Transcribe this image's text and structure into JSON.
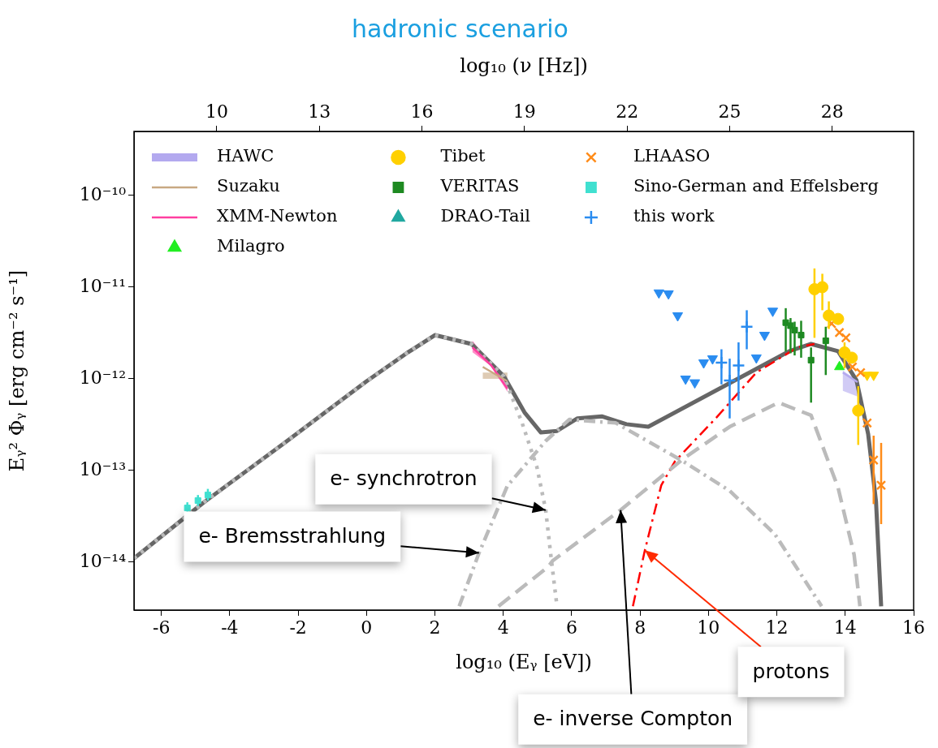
{
  "chart_data": {
    "type": "scatter",
    "title": "hadronic scenario",
    "xlabel": "log₁₀ (Eᵧ [eV])",
    "x2label": "log₁₀ (ν [Hz])",
    "ylabel": "Eᵧ² Φᵧ [erg cm⁻² s⁻¹]",
    "xlim": [
      -6.8,
      16
    ],
    "xticks": [
      -6,
      -4,
      -2,
      0,
      2,
      4,
      6,
      8,
      10,
      12,
      14,
      16
    ],
    "x2lim": [
      7.58,
      30.38
    ],
    "x2ticks": [
      10,
      13,
      16,
      19,
      22,
      25,
      28
    ],
    "ylim": [
      3e-15,
      5e-10
    ],
    "yticks": [
      {
        "value": 1e-14,
        "label": "10⁻¹⁴"
      },
      {
        "value": 1e-13,
        "label": "10⁻¹³"
      },
      {
        "value": 1e-12,
        "label": "10⁻¹²"
      },
      {
        "value": 1e-11,
        "label": "10⁻¹¹"
      },
      {
        "value": 1e-10,
        "label": "10⁻¹⁰"
      }
    ],
    "log": true,
    "grid": false,
    "legend": "top left",
    "series": [
      {
        "name": "HAWC",
        "type": "line",
        "color": "#b3a9ef",
        "line_style": "solid",
        "x": [
          13.93,
          14.36
        ],
        "values": [
          1.17e-12,
          9.2e-13
        ],
        "lower": [
          7.4e-13,
          6.4e-13
        ],
        "upper": [
          1.23e-12,
          9.6e-13
        ]
      },
      {
        "name": "Suzaku",
        "type": "line",
        "color": "#c8a882",
        "line_style": "solid",
        "x": [
          3.4,
          4.12
        ],
        "values": [
          1.35e-12,
          9.4e-13
        ],
        "lower": [
          1e-12,
          1e-12
        ],
        "upper": [
          1.17e-12,
          1.17e-12
        ]
      },
      {
        "name": "XMM-Newton",
        "type": "line",
        "color": "#ff3fa0",
        "line_style": "solid",
        "x": [
          3.1,
          3.64,
          4.12
        ],
        "values": [
          2.2e-12,
          1.41e-12,
          7.8e-13
        ],
        "lower": [
          1.95e-12,
          1.38e-12,
          7.2e-13
        ],
        "upper": [
          2.6e-12,
          1.45e-12,
          8.5e-13
        ]
      },
      {
        "name": "Milagro",
        "color": "#22ee22",
        "marker": "triangle",
        "x": [
          13.83
        ],
        "values": [
          1.35e-12
        ]
      },
      {
        "name": "Tibet",
        "color": "#ffd000",
        "marker": "circle",
        "x": [
          13.1,
          13.33,
          13.52,
          13.79,
          13.98,
          14.19,
          14.38
        ],
        "values": [
          9.5e-12,
          1e-11,
          4.9e-12,
          4.5e-12,
          1.94e-12,
          1.7e-12,
          4.5e-13
        ],
        "errors": [
          [
            2.8e-12,
            1.6e-11
          ],
          [
            5.6e-12,
            1.4e-11
          ],
          [
            3.5e-12,
            7e-12
          ],
          null,
          [
            1.3e-12,
            2.5e-12
          ],
          null,
          [
            1.9e-13,
            8.3e-13
          ]
        ]
      },
      {
        "name": "VERITAS",
        "color": "#1e8a22",
        "marker": "square",
        "x": [
          12.26,
          12.4,
          12.52,
          12.71,
          13.0,
          13.43
        ],
        "values": [
          4.1e-12,
          3.8e-12,
          3.4e-12,
          3e-12,
          1.6e-12,
          2.6e-12
        ],
        "errors": [
          [
            2e-12,
            5.9e-12
          ],
          [
            1.9e-12,
            4.6e-12
          ],
          [
            1.8e-12,
            4.2e-12
          ],
          [
            1.7e-12,
            4.3e-12
          ],
          [
            5.5e-13,
            2.2e-12
          ],
          [
            1.1e-12,
            3.7e-12
          ]
        ]
      },
      {
        "name": "DRAO-Tail",
        "color": "#20a8a0",
        "marker": "triangle"
      },
      {
        "name": "LHAASO",
        "color": "#ff8c1a",
        "marker": "cross",
        "x": [
          13.6,
          13.83,
          14.02,
          14.21,
          14.45,
          14.64,
          14.83,
          15.05
        ],
        "values": [
          4e-12,
          3.2e-12,
          2.8e-12,
          1.35e-12,
          1.17e-12,
          3.3e-13,
          1.3e-13,
          6.9e-14
        ],
        "errors": [
          null,
          null,
          null,
          null,
          null,
          null,
          [
            4.3e-14,
            2.4e-13
          ],
          [
            2.6e-14,
            2e-13
          ]
        ]
      },
      {
        "name": "Sino-German and Effelsberg",
        "color": "#40e0d0",
        "marker": "square",
        "x": [
          -5.24,
          -4.93,
          -4.64
        ],
        "values": [
          3.9e-14,
          4.7e-14,
          5.4e-14
        ],
        "errors": [
          [
            3.4e-14,
            4.5e-14
          ],
          [
            4.1e-14,
            5.4e-14
          ],
          [
            4.7e-14,
            6.3e-14
          ]
        ]
      },
      {
        "name": "this work",
        "color": "#2a8cf0",
        "marker": "cross",
        "x": [
          10.38,
          10.62,
          10.88,
          11.12
        ],
        "values": [
          1.5e-12,
          9.6e-13,
          1.4e-12,
          3.7e-12
        ],
        "errors": [
          [
            8.7e-13,
            2.1e-12
          ],
          [
            3.7e-13,
            1.66e-12
          ],
          [
            5.8e-13,
            2.5e-12
          ],
          [
            2.1e-12,
            5.6e-12
          ]
        ]
      },
      {
        "color": "#2a8cf0",
        "marker": "triangle",
        "x": [
          8.55,
          8.83,
          9.1,
          9.33,
          9.6,
          9.86,
          10.12,
          11.4,
          11.64,
          11.88
        ],
        "values": [
          8.7e-12,
          8.5e-12,
          4.9e-12,
          1e-12,
          9.1e-13,
          1.5e-12,
          1.66e-12,
          1.7e-12,
          3e-12,
          5.5e-12
        ]
      },
      {
        "color": "#ffd000",
        "marker": "triangle",
        "x": [
          14.64,
          14.83
        ],
        "values": [
          1.1e-12,
          1.1e-12
        ]
      },
      {
        "type": "line",
        "color": "#bbbbbb",
        "line_style": "dotted",
        "x": [
          -6.8,
          -4.79,
          -2.4,
          0.0,
          1.17,
          2.0,
          3.07,
          4.02,
          4.55,
          4.98,
          5.24,
          5.4,
          5.57
        ],
        "values": [
          1.1e-14,
          4.4e-14,
          2e-13,
          9.4e-13,
          1.9e-12,
          3e-12,
          2.4e-12,
          1.06e-12,
          3.3e-13,
          1.1e-13,
          3.7e-14,
          1.1e-14,
          3.3e-15
        ]
      },
      {
        "type": "line",
        "color": "#bbbbbb",
        "line_style": "dashdot",
        "x": [
          2.71,
          3.29,
          4.12,
          5.24,
          5.93,
          7.29,
          9.26,
          10.62,
          11.95,
          13.31
        ],
        "values": [
          3.3e-15,
          1.26e-14,
          6.8e-14,
          2.1e-13,
          3.6e-13,
          3.3e-13,
          1.26e-13,
          6e-14,
          2e-14,
          3.3e-15
        ]
      },
      {
        "type": "line",
        "color": "#bbbbbb",
        "line_style": "dashed",
        "x": [
          3.86,
          5.31,
          5.45,
          7.43,
          9.26,
          10.62,
          12.05,
          13.0,
          13.79,
          14.26,
          14.43
        ],
        "values": [
          3.3e-15,
          8.9e-15,
          1.04e-14,
          3.7e-14,
          1.34e-13,
          3e-13,
          5.5e-13,
          4e-13,
          6.5e-14,
          1.2e-14,
          3.3e-15
        ]
      },
      {
        "type": "line",
        "color": "#ff0000",
        "line_style": "dashdot",
        "x": [
          7.79,
          8.14,
          8.62,
          9.02,
          10.21,
          11.4,
          12.6,
          13.1
        ],
        "values": [
          3.3e-15,
          1.35e-14,
          6.9e-14,
          1.26e-13,
          3.7e-13,
          1.17e-12,
          2.2e-12,
          2.4e-12
        ]
      },
      {
        "type": "line",
        "color": "#666666",
        "line_style": "solid",
        "x": [
          -6.8,
          -4.79,
          -2.4,
          0.0,
          1.17,
          2.0,
          3.07,
          4.02,
          4.62,
          5.1,
          5.57,
          6.17,
          6.88,
          7.6,
          8.24,
          10.2,
          12.36,
          13.0,
          13.79,
          14.33,
          14.67,
          14.9,
          15.05
        ],
        "values": [
          1.1e-14,
          4.4e-14,
          2e-13,
          9.4e-13,
          1.9e-12,
          3e-12,
          2.4e-12,
          1.06e-12,
          4.3e-13,
          2.6e-13,
          2.7e-13,
          3.7e-13,
          3.9e-13,
          3.2e-13,
          3e-13,
          7.4e-13,
          2e-12,
          2.4e-12,
          2e-12,
          9.6e-13,
          2.5e-13,
          4.6e-14,
          3.3e-15
        ]
      }
    ],
    "annotations": [
      {
        "text": "e- synchrotron",
        "x": 5.24,
        "y": 3.7e-14
      },
      {
        "text": "e- Bremsstrahlung",
        "x": 3.29,
        "y": 1.26e-14
      },
      {
        "text": "e- inverse Compton",
        "x": 7.43,
        "y": 3.7e-14
      },
      {
        "text": "protons",
        "x": 8.14,
        "y": 1.35e-14
      }
    ]
  }
}
